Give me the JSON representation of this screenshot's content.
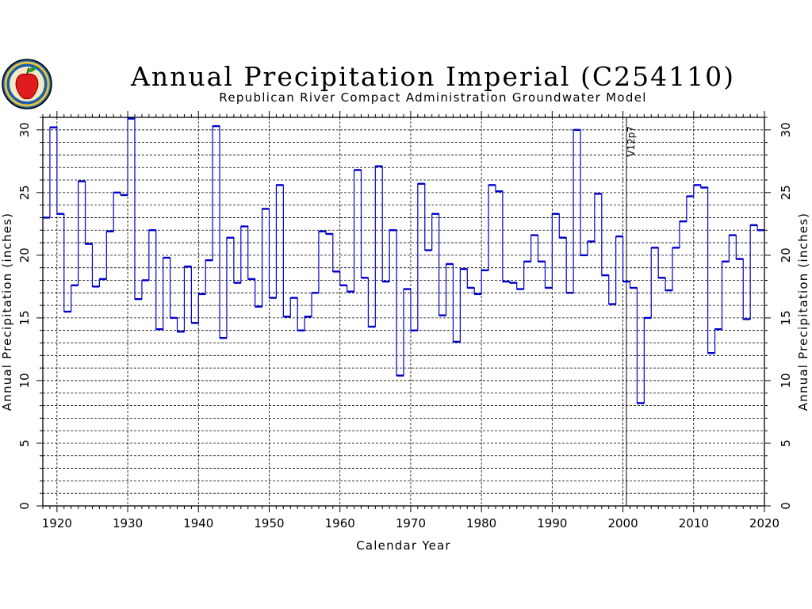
{
  "chart_data": {
    "type": "line",
    "title": "Annual Precipitation Imperial (C254110)",
    "subtitle": "Republican River Compact Administration Groundwater Model",
    "xlabel": "Calendar Year",
    "ylabel": "Annual Precipitation (inches)",
    "xlim": [
      1918,
      2020
    ],
    "ylim": [
      0,
      31
    ],
    "x_ticks": [
      1920,
      1930,
      1940,
      1950,
      1960,
      1970,
      1980,
      1990,
      2000,
      2010,
      2020
    ],
    "y_ticks": [
      0,
      5,
      10,
      15,
      20,
      25,
      30
    ],
    "grid": true,
    "annotation": {
      "label": "V12p7",
      "x": 2000.5
    },
    "colors": {
      "series": "#0000cc",
      "axes": "#000000",
      "grid": "#000000"
    },
    "series": [
      {
        "style": "step",
        "x": [
          1918,
          1919,
          1920,
          1921,
          1922,
          1923,
          1924,
          1925,
          1926,
          1927,
          1928,
          1929,
          1930,
          1931,
          1932,
          1933,
          1934,
          1935,
          1936,
          1937,
          1938,
          1939,
          1940,
          1941,
          1942,
          1943,
          1944,
          1945,
          1946,
          1947,
          1948,
          1949,
          1950,
          1951,
          1952,
          1953,
          1954,
          1955,
          1956,
          1957,
          1958,
          1959,
          1960,
          1961,
          1962,
          1963,
          1964,
          1965,
          1966,
          1967,
          1968,
          1969,
          1970,
          1971,
          1972,
          1973,
          1974,
          1975,
          1976,
          1977,
          1978,
          1979,
          1980,
          1981,
          1982,
          1983,
          1984,
          1985,
          1986,
          1987,
          1988,
          1989,
          1990,
          1991,
          1992,
          1993,
          1994,
          1995,
          1996,
          1997,
          1998,
          1999,
          2000,
          2001,
          2002,
          2003,
          2004,
          2005,
          2006,
          2007,
          2008,
          2009,
          2010,
          2011,
          2012,
          2013,
          2014,
          2015,
          2016,
          2017,
          2018,
          2019
        ],
        "values": [
          23.0,
          30.2,
          23.3,
          15.5,
          17.6,
          25.9,
          20.9,
          17.5,
          18.1,
          21.9,
          25.0,
          24.8,
          30.9,
          16.5,
          18.0,
          22.0,
          14.1,
          19.8,
          15.0,
          13.9,
          19.1,
          14.6,
          16.9,
          19.6,
          30.3,
          13.4,
          21.4,
          17.8,
          22.3,
          18.1,
          15.9,
          23.7,
          16.6,
          25.6,
          15.1,
          16.6,
          14.0,
          15.1,
          17.0,
          21.9,
          21.7,
          18.7,
          17.6,
          17.1,
          26.8,
          18.2,
          14.3,
          27.1,
          17.9,
          22.0,
          10.4,
          17.3,
          14.0,
          25.7,
          20.4,
          23.3,
          15.2,
          19.3,
          13.1,
          18.9,
          17.4,
          16.9,
          18.8,
          25.6,
          25.1,
          17.9,
          17.8,
          17.3,
          19.5,
          21.6,
          19.5,
          17.4,
          23.3,
          21.4,
          17.0,
          30.0,
          20.0,
          21.1,
          24.9,
          18.4,
          16.1,
          21.5,
          17.9,
          17.4,
          8.2,
          15.0,
          20.6,
          18.2,
          17.2,
          20.6,
          22.7,
          24.7,
          25.6,
          25.4,
          12.2,
          14.1,
          19.5,
          21.6,
          19.7,
          14.9,
          22.4,
          22.0
        ]
      }
    ]
  }
}
